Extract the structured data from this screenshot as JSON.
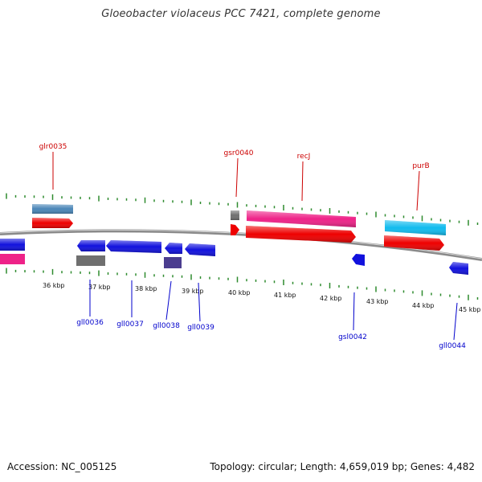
{
  "title": "Gloeobacter violaceus PCC 7421, complete genome",
  "footer": {
    "accession": "Accession: NC_005125",
    "topology": "Topology: circular; Length: 4,659,019 bp; Genes: 4,482"
  },
  "colors": {
    "backbone": "#8a8a8a",
    "ticks": "#2e8b2e",
    "label_forward": "#cc0000",
    "label_reverse": "#0000cc",
    "cds": "#ee0000",
    "gene_forward": "#4a86b8",
    "gene_pink": "#ee2288",
    "gene_cyan": "#11bbee",
    "gene_reverse": "#1111dd",
    "gene_gray": "#6f6f6f",
    "gene_indigo": "#4b3d8f"
  },
  "scale_labels": [
    "36 kbp",
    "37 kbp",
    "38 kbp",
    "39 kbp",
    "40 kbp",
    "41 kbp",
    "42 kbp",
    "43 kbp",
    "44 kbp",
    "45 kbp"
  ],
  "gene_labels": {
    "forward": [
      "glr0035",
      "gsr0040",
      "recJ",
      "purB"
    ],
    "reverse": [
      "gll0036",
      "gll0037",
      "gll0038",
      "gll0039",
      "gsl0042",
      "gll0044"
    ]
  }
}
